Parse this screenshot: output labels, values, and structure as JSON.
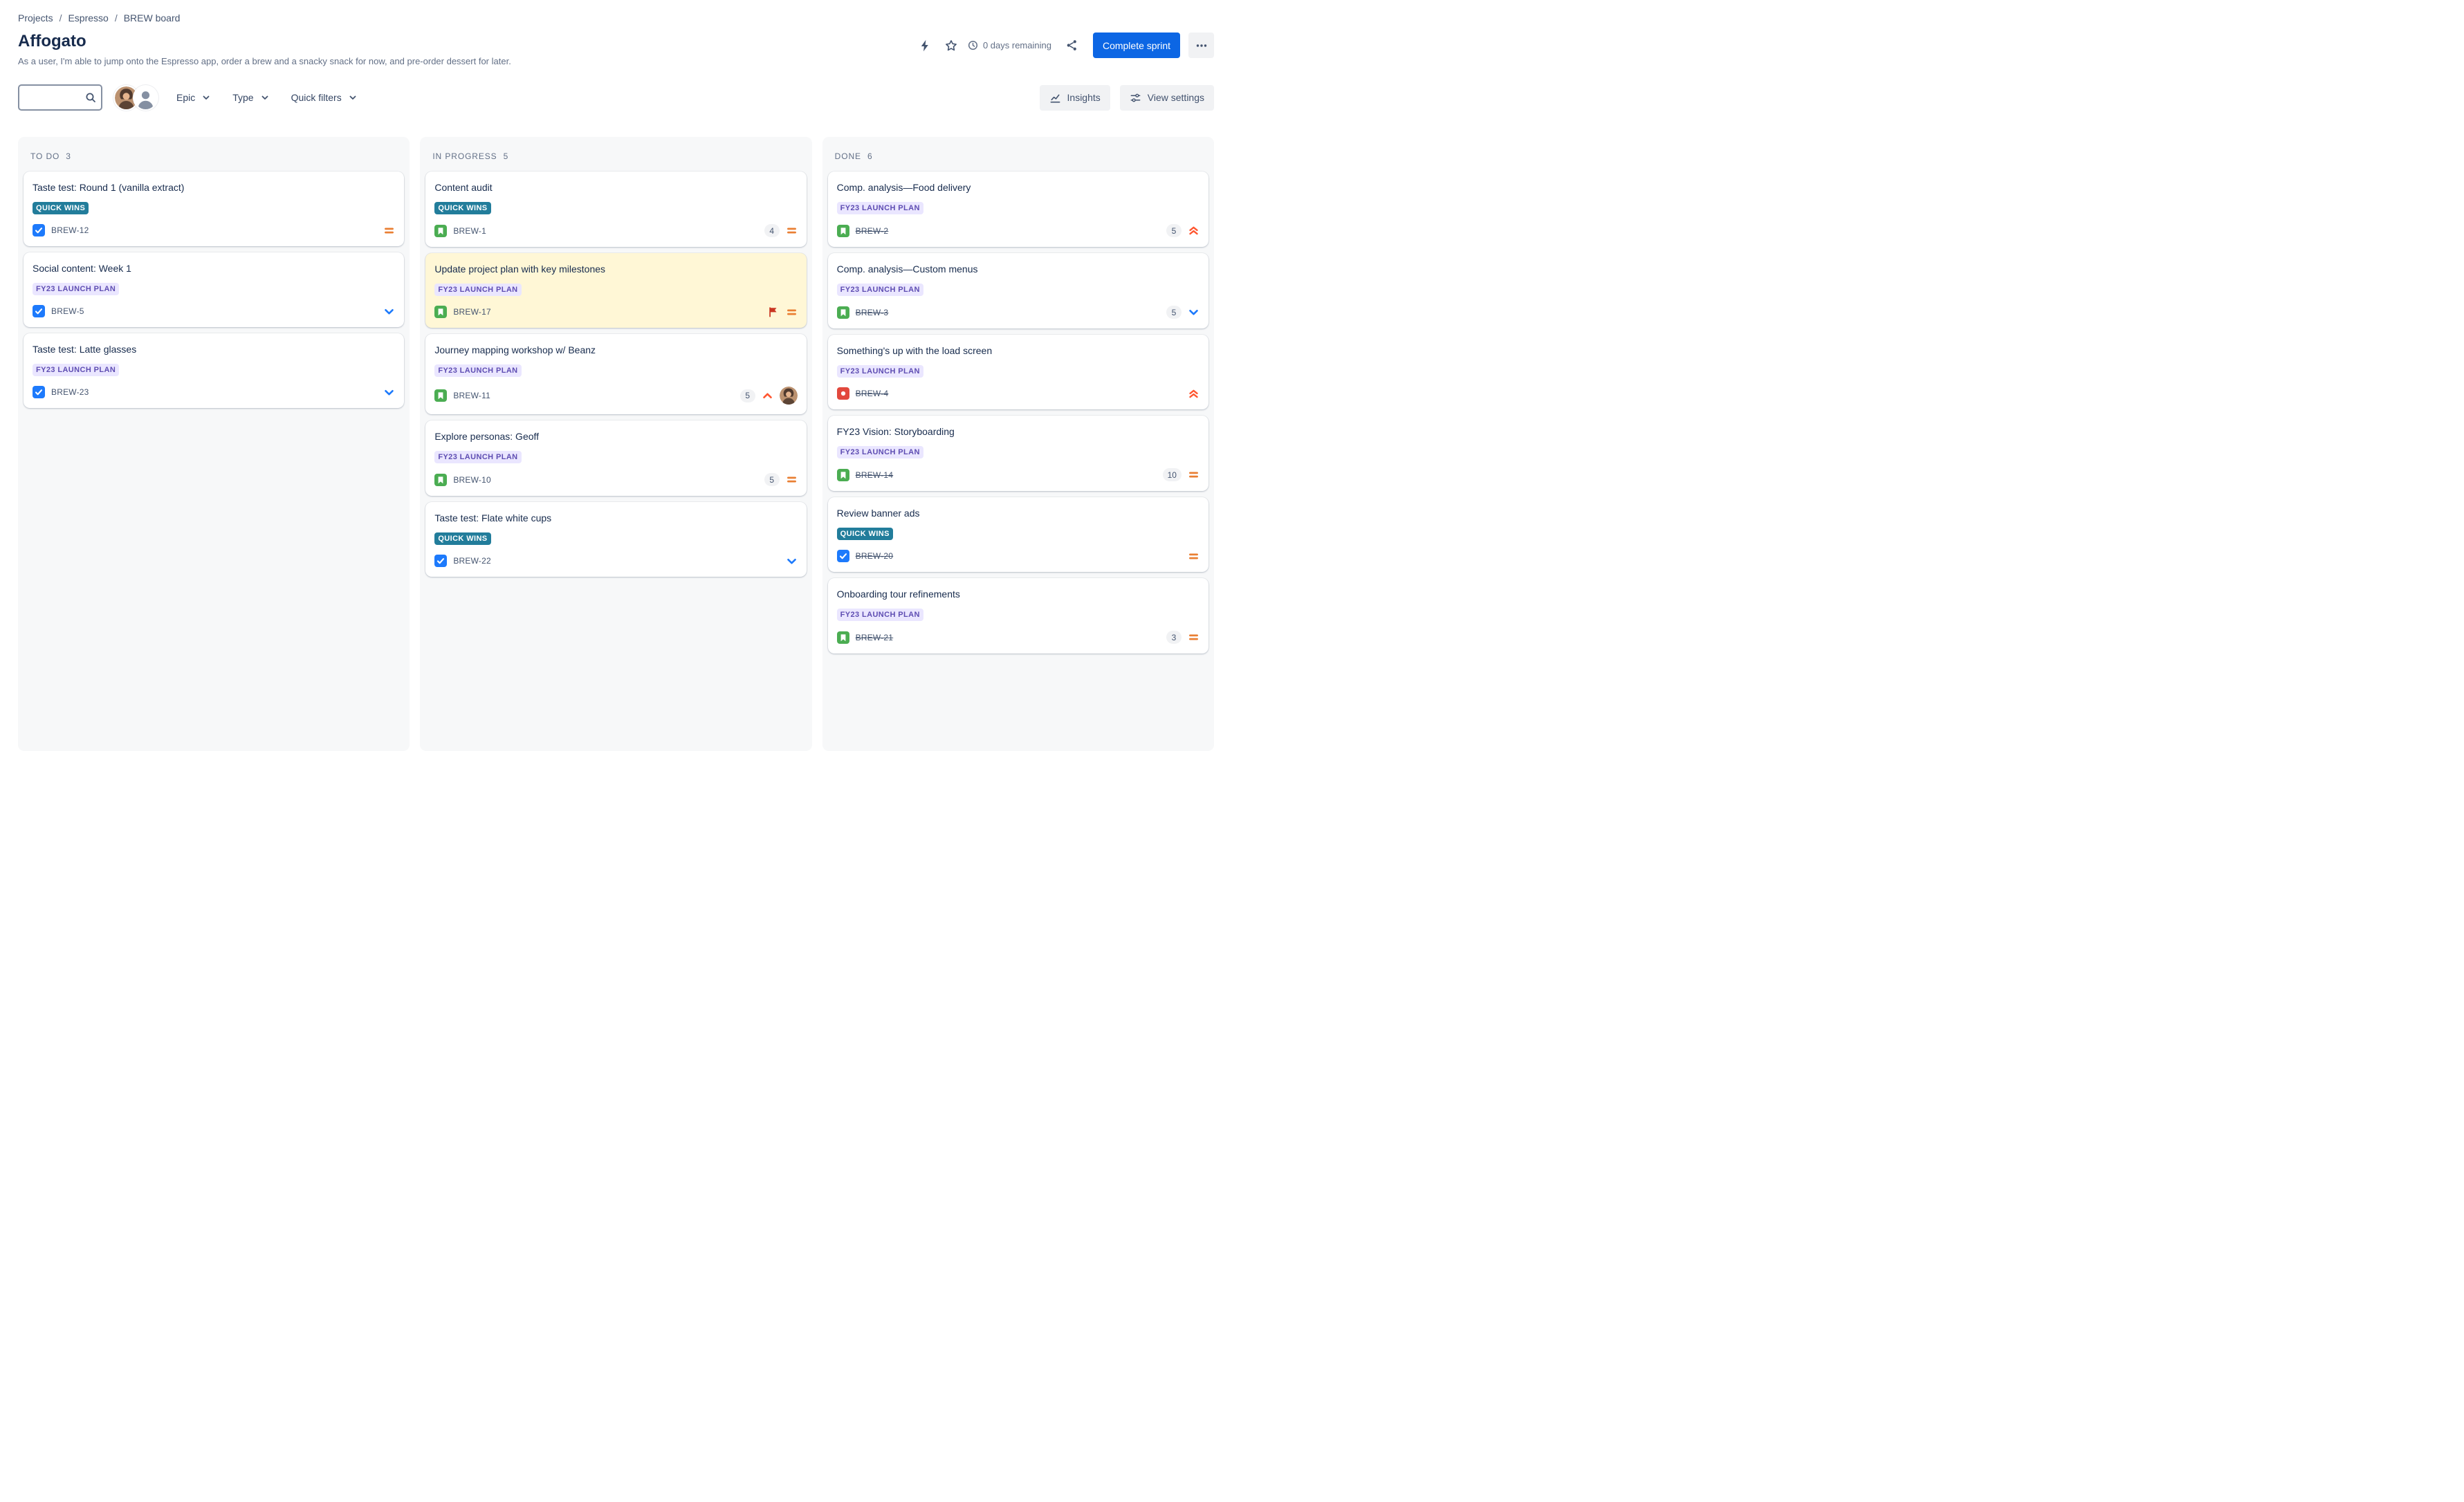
{
  "breadcrumb": {
    "separator": "/",
    "items": [
      "Projects",
      "Espresso",
      "BREW board"
    ]
  },
  "header": {
    "title": "Affogato",
    "subtitle": "As a user, I'm able to jump onto the Espresso app, order a brew and a snacky snack for now, and pre-order dessert for later.",
    "days_remaining": "0 days remaining",
    "complete_sprint_label": "Complete sprint"
  },
  "toolbar": {
    "search_value": "",
    "filters": [
      {
        "label": "Epic"
      },
      {
        "label": "Type"
      },
      {
        "label": "Quick filters"
      }
    ],
    "insights_label": "Insights",
    "view_settings_label": "View settings"
  },
  "board": {
    "columns": [
      {
        "id": "todo",
        "name": "TO DO",
        "count": 3,
        "cards": [
          {
            "title": "Taste test: Round 1 (vanilla extract)",
            "epic": "QUICK WINS",
            "epic_color": "teal",
            "key": "BREW-12",
            "type": "task",
            "priority": "medium",
            "estimate": null,
            "done": false,
            "flagged": false,
            "assignee_avatar": false
          },
          {
            "title": "Social content: Week 1",
            "epic": "FY23 LAUNCH PLAN",
            "epic_color": "purple",
            "key": "BREW-5",
            "type": "task",
            "priority": "low",
            "estimate": null,
            "done": false,
            "flagged": false,
            "assignee_avatar": false
          },
          {
            "title": "Taste test: Latte glasses",
            "epic": "FY23 LAUNCH PLAN",
            "epic_color": "purple",
            "key": "BREW-23",
            "type": "task",
            "priority": "low",
            "estimate": null,
            "done": false,
            "flagged": false,
            "assignee_avatar": false
          }
        ]
      },
      {
        "id": "inprogress",
        "name": "IN PROGRESS",
        "count": 5,
        "cards": [
          {
            "title": "Content audit",
            "epic": "QUICK WINS",
            "epic_color": "teal",
            "key": "BREW-1",
            "type": "story",
            "priority": "medium",
            "estimate": 4,
            "done": false,
            "flagged": false,
            "assignee_avatar": false
          },
          {
            "title": "Update project plan with key milestones",
            "epic": "FY23 LAUNCH PLAN",
            "epic_color": "purple",
            "key": "BREW-17",
            "type": "story",
            "priority": "medium",
            "estimate": null,
            "done": false,
            "flagged": true,
            "assignee_avatar": false
          },
          {
            "title": "Journey mapping workshop w/ Beanz",
            "epic": "FY23 LAUNCH PLAN",
            "epic_color": "purple",
            "key": "BREW-11",
            "type": "story",
            "priority": "high",
            "estimate": 5,
            "done": false,
            "flagged": false,
            "assignee_avatar": true
          },
          {
            "title": "Explore personas: Geoff",
            "epic": "FY23 LAUNCH PLAN",
            "epic_color": "purple",
            "key": "BREW-10",
            "type": "story",
            "priority": "medium",
            "estimate": 5,
            "done": false,
            "flagged": false,
            "assignee_avatar": false
          },
          {
            "title": "Taste test: Flate white cups",
            "epic": "QUICK WINS",
            "epic_color": "teal",
            "key": "BREW-22",
            "type": "task",
            "priority": "low",
            "estimate": null,
            "done": false,
            "flagged": false,
            "assignee_avatar": false
          }
        ]
      },
      {
        "id": "done",
        "name": "DONE",
        "count": 6,
        "cards": [
          {
            "title": "Comp. analysis—Food delivery",
            "epic": "FY23 LAUNCH PLAN",
            "epic_color": "purple",
            "key": "BREW-2",
            "type": "story",
            "priority": "highest",
            "estimate": 5,
            "done": true,
            "flagged": false,
            "assignee_avatar": false
          },
          {
            "title": "Comp. analysis—Custom menus",
            "epic": "FY23 LAUNCH PLAN",
            "epic_color": "purple",
            "key": "BREW-3",
            "type": "story",
            "priority": "low",
            "estimate": 5,
            "done": true,
            "flagged": false,
            "assignee_avatar": false
          },
          {
            "title": "Something's up with the load screen",
            "epic": "FY23 LAUNCH PLAN",
            "epic_color": "purple",
            "key": "BREW-4",
            "type": "bug",
            "priority": "highest",
            "estimate": null,
            "done": true,
            "flagged": false,
            "assignee_avatar": false
          },
          {
            "title": "FY23 Vision: Storyboarding",
            "epic": "FY23 LAUNCH PLAN",
            "epic_color": "purple",
            "key": "BREW-14",
            "type": "story",
            "priority": "medium",
            "estimate": 10,
            "done": true,
            "flagged": false,
            "assignee_avatar": false
          },
          {
            "title": "Review banner ads",
            "epic": "QUICK WINS",
            "epic_color": "teal",
            "key": "BREW-20",
            "type": "task",
            "priority": "medium",
            "estimate": null,
            "done": true,
            "flagged": false,
            "assignee_avatar": false
          },
          {
            "title": "Onboarding tour refinements",
            "epic": "FY23 LAUNCH PLAN",
            "epic_color": "purple",
            "key": "BREW-21",
            "type": "story",
            "priority": "medium",
            "estimate": 3,
            "done": true,
            "flagged": false,
            "assignee_avatar": false
          }
        ]
      }
    ]
  },
  "colors": {
    "accent_blue": "#0C66E4",
    "epic_teal_bg": "#227D9B",
    "epic_purple_bg": "#EAE6FF",
    "epic_purple_text": "#5E4DB2",
    "flagged_card_bg": "#FFF7D6",
    "priority_medium": "#E97F33",
    "priority_low": "#1D7AFC",
    "priority_high": "#FF5630",
    "task_blue": "#1D7AFC",
    "story_green": "#4BAD52",
    "bug_red": "#E2483D",
    "flag_red": "#CA3521",
    "column_bg": "#F7F8F9",
    "text_primary": "#172B4D",
    "text_secondary": "#626F86"
  }
}
